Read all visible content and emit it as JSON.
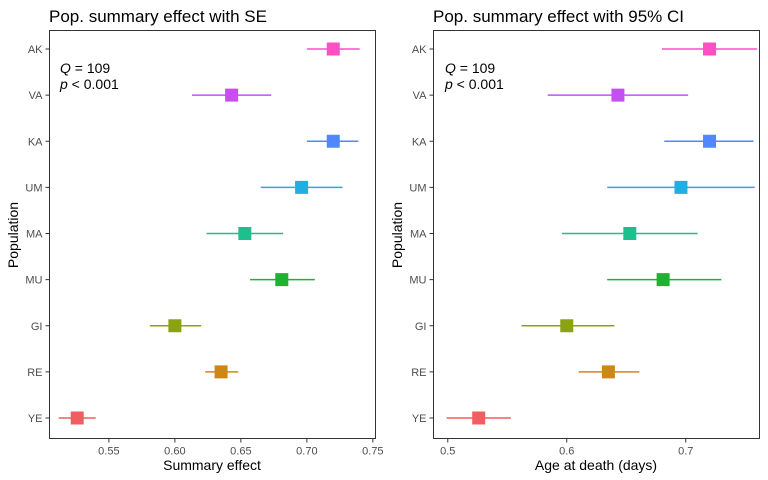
{
  "chart_data": [
    {
      "type": "scatter",
      "title": "Pop. summary effect with SE",
      "xlabel": "Summary effect",
      "ylabel": "Population",
      "xlim": [
        0.505,
        0.752
      ],
      "x_ticks": [
        "0.55",
        "0.60",
        "0.65",
        "0.70",
        "0.75"
      ],
      "x_tick_values": [
        0.55,
        0.6,
        0.65,
        0.7,
        0.75
      ],
      "categories": [
        "AK",
        "VA",
        "KA",
        "UM",
        "MA",
        "MU",
        "GI",
        "RE",
        "YE"
      ],
      "points": [
        {
          "population": "AK",
          "estimate": 0.72,
          "low": 0.7,
          "high": 0.74,
          "color": "#FF4FC5"
        },
        {
          "population": "VA",
          "estimate": 0.643,
          "low": 0.613,
          "high": 0.673,
          "color": "#C74FF0"
        },
        {
          "population": "KA",
          "estimate": 0.72,
          "low": 0.7,
          "high": 0.739,
          "color": "#5087FF"
        },
        {
          "population": "UM",
          "estimate": 0.696,
          "low": 0.665,
          "high": 0.727,
          "color": "#20AEE4"
        },
        {
          "population": "MA",
          "estimate": 0.653,
          "low": 0.624,
          "high": 0.682,
          "color": "#1DBF8C"
        },
        {
          "population": "MU",
          "estimate": 0.681,
          "low": 0.657,
          "high": 0.706,
          "color": "#1FB132"
        },
        {
          "population": "GI",
          "estimate": 0.6,
          "low": 0.581,
          "high": 0.62,
          "color": "#8CA215"
        },
        {
          "population": "RE",
          "estimate": 0.635,
          "low": 0.623,
          "high": 0.648,
          "color": "#CC8714"
        },
        {
          "population": "YE",
          "estimate": 0.526,
          "low": 0.512,
          "high": 0.54,
          "color": "#EF5F61"
        }
      ],
      "annotation": {
        "q_symbol": "Q",
        "q_value": " = 109",
        "p_symbol": "p",
        "p_value": " < 0.001"
      },
      "grid": false
    },
    {
      "type": "scatter",
      "title": "Pop. summary effect with 95% CI",
      "xlabel": "Age at death (days)",
      "ylabel": "Population",
      "xlim": [
        0.488,
        0.762
      ],
      "x_ticks": [
        "0.5",
        "0.6",
        "0.7"
      ],
      "x_tick_values": [
        0.5,
        0.6,
        0.7
      ],
      "categories": [
        "AK",
        "VA",
        "KA",
        "UM",
        "MA",
        "MU",
        "GI",
        "RE",
        "YE"
      ],
      "points": [
        {
          "population": "AK",
          "estimate": 0.72,
          "low": 0.68,
          "high": 0.76,
          "color": "#FF4FC5"
        },
        {
          "population": "VA",
          "estimate": 0.643,
          "low": 0.584,
          "high": 0.702,
          "color": "#C74FF0"
        },
        {
          "population": "KA",
          "estimate": 0.72,
          "low": 0.682,
          "high": 0.757,
          "color": "#5087FF"
        },
        {
          "population": "UM",
          "estimate": 0.696,
          "low": 0.634,
          "high": 0.758,
          "color": "#20AEE4"
        },
        {
          "population": "MA",
          "estimate": 0.653,
          "low": 0.596,
          "high": 0.71,
          "color": "#1DBF8C"
        },
        {
          "population": "MU",
          "estimate": 0.681,
          "low": 0.634,
          "high": 0.73,
          "color": "#1FB132"
        },
        {
          "population": "GI",
          "estimate": 0.6,
          "low": 0.562,
          "high": 0.64,
          "color": "#8CA215"
        },
        {
          "population": "RE",
          "estimate": 0.635,
          "low": 0.61,
          "high": 0.661,
          "color": "#CC8714"
        },
        {
          "population": "YE",
          "estimate": 0.526,
          "low": 0.499,
          "high": 0.553,
          "color": "#EF5F61"
        }
      ],
      "annotation": {
        "q_symbol": "Q",
        "q_value": " = 109",
        "p_symbol": "p",
        "p_value": " < 0.001"
      },
      "grid": false
    }
  ]
}
